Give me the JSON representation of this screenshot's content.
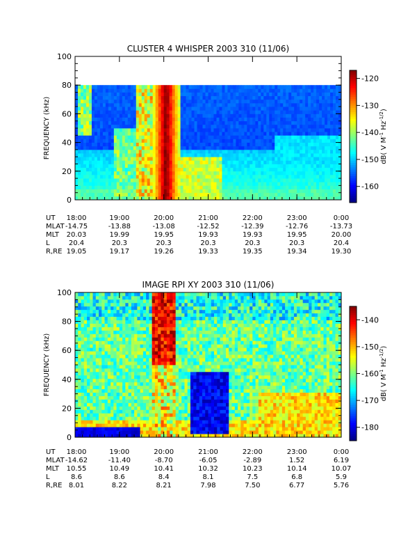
{
  "chart_data": [
    {
      "type": "heatmap",
      "title": "CLUSTER 4 WHISPER 2003 310 (11/06)",
      "ylabel": "FREQUENCY (kHz)",
      "ylim": [
        0,
        100
      ],
      "yticks": [
        "0",
        "20",
        "40",
        "60",
        "80",
        "100"
      ],
      "xlim_hours": [
        18,
        24
      ],
      "colorbar": {
        "label": "dB( V M⁻¹ Hz⁻¹ᐟ²)",
        "label_prefix": "dB( V M",
        "label_sup1": "-1",
        "label_mid": " Hz",
        "label_sup2": "-1/2",
        "label_suffix": ")",
        "range": [
          -166,
          -117
        ],
        "ticks": [
          "-120",
          "-130",
          "-140",
          "-150",
          "-160"
        ],
        "tick_values": [
          -120,
          -130,
          -140,
          -150,
          -160
        ]
      },
      "data_max_frequency": 80,
      "features": [
        {
          "name": "intense emission",
          "time_range": [
            "19:45",
            "20:20"
          ],
          "freq_range": [
            0,
            80
          ],
          "level": -118
        },
        {
          "name": "enhanced band",
          "time_range": [
            "18:00",
            "24:00"
          ],
          "freq_range": [
            0,
            35
          ],
          "level": -148
        }
      ],
      "ephemeris": {
        "labels": [
          "UT",
          "MLAT",
          "MLT",
          "L",
          "R,RE"
        ],
        "rows": [
          [
            "18:00",
            "19:00",
            "20:00",
            "21:00",
            "22:00",
            "23:00",
            "0:00"
          ],
          [
            "-14.75",
            "-13.88",
            "-13.08",
            "-12.52",
            "-12.39",
            "-12.76",
            "-13.73"
          ],
          [
            "20.03",
            "19.99",
            "19.95",
            "19.93",
            "19.93",
            "19.95",
            "20.00"
          ],
          [
            "20.4",
            "20.3",
            "20.3",
            "20.3",
            "20.3",
            "20.3",
            "20.4"
          ],
          [
            "19.05",
            "19.17",
            "19.26",
            "19.33",
            "19.35",
            "19.34",
            "19.30"
          ]
        ]
      }
    },
    {
      "type": "heatmap",
      "title": "IMAGE RPI XY 2003 310 (11/06)",
      "ylabel": "FREQUENCY (kHz)",
      "ylim": [
        0,
        100
      ],
      "yticks": [
        "0",
        "20",
        "40",
        "60",
        "80",
        "100"
      ],
      "xlim_hours": [
        18,
        24
      ],
      "colorbar": {
        "label_prefix": "dB( V M",
        "label_sup1": "-1",
        "label_mid": " Hz",
        "label_sup2": "-1/2",
        "label_suffix": ")",
        "range": [
          -185,
          -135
        ],
        "ticks": [
          "-140",
          "-150",
          "-160",
          "-170",
          "-180"
        ],
        "tick_values": [
          -140,
          -150,
          -160,
          -170,
          -180
        ]
      },
      "features": [
        {
          "name": "intense emission",
          "time_range": [
            "19:45",
            "20:15"
          ],
          "freq_range": [
            50,
            100
          ],
          "level": -137
        },
        {
          "name": "low background region",
          "time_range": [
            "20:35",
            "21:30"
          ],
          "freq_range": [
            0,
            50
          ],
          "level": -183
        }
      ],
      "ephemeris": {
        "labels": [
          "UT",
          "MLAT",
          "MLT",
          "L",
          "R,RE"
        ],
        "rows": [
          [
            "18:00",
            "19:00",
            "20:00",
            "21:00",
            "22:00",
            "23:00",
            "0:00"
          ],
          [
            "-14.62",
            "-11.40",
            "-8.70",
            "-6.05",
            "-2.89",
            "1.52",
            "6.19"
          ],
          [
            "10.55",
            "10.49",
            "10.41",
            "10.32",
            "10.23",
            "10.14",
            "10.07"
          ],
          [
            "8.6",
            "8.6",
            "8.4",
            "8.1",
            "7.5",
            "6.8",
            "5.9"
          ],
          [
            "8.01",
            "8.22",
            "8.21",
            "7.98",
            "7.50",
            "6.77",
            "5.76"
          ]
        ]
      }
    }
  ]
}
